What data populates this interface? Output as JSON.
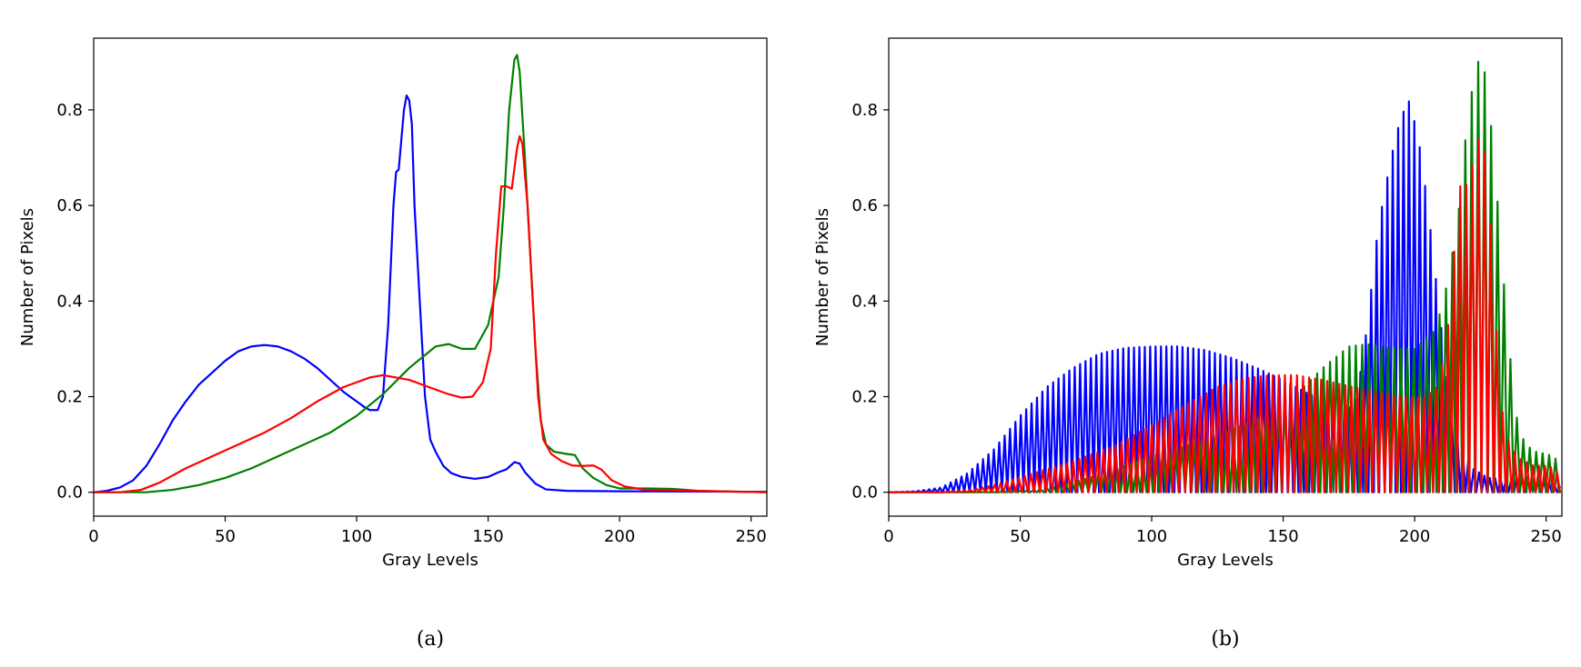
{
  "chart_data": [
    {
      "type": "line",
      "caption": "(a)",
      "xlabel": "Gray Levels",
      "ylabel": "Number of Pixels",
      "xlim": [
        0,
        256
      ],
      "ylim": [
        -0.05,
        0.95
      ],
      "xticks": [
        0,
        50,
        100,
        150,
        200,
        250
      ],
      "yticks": [
        0.0,
        0.2,
        0.4,
        0.6,
        0.8
      ],
      "ytick_labels": [
        "0.0",
        "0.2",
        "0.4",
        "0.6",
        "0.8"
      ],
      "grid": false,
      "series": [
        {
          "color": "#0000ff",
          "points": [
            [
              0,
              0
            ],
            [
              5,
              0.003
            ],
            [
              10,
              0.01
            ],
            [
              15,
              0.025
            ],
            [
              20,
              0.055
            ],
            [
              25,
              0.1
            ],
            [
              30,
              0.15
            ],
            [
              35,
              0.19
            ],
            [
              40,
              0.225
            ],
            [
              45,
              0.25
            ],
            [
              50,
              0.275
            ],
            [
              55,
              0.295
            ],
            [
              60,
              0.305
            ],
            [
              65,
              0.308
            ],
            [
              70,
              0.305
            ],
            [
              75,
              0.295
            ],
            [
              80,
              0.28
            ],
            [
              85,
              0.26
            ],
            [
              90,
              0.235
            ],
            [
              95,
              0.21
            ],
            [
              100,
              0.19
            ],
            [
              103,
              0.178
            ],
            [
              105,
              0.172
            ],
            [
              108,
              0.172
            ],
            [
              110,
              0.2
            ],
            [
              112,
              0.35
            ],
            [
              114,
              0.6
            ],
            [
              115,
              0.67
            ],
            [
              116,
              0.675
            ],
            [
              118,
              0.8
            ],
            [
              119,
              0.83
            ],
            [
              120,
              0.82
            ],
            [
              121,
              0.77
            ],
            [
              122,
              0.6
            ],
            [
              124,
              0.4
            ],
            [
              126,
              0.2
            ],
            [
              128,
              0.11
            ],
            [
              130,
              0.085
            ],
            [
              133,
              0.055
            ],
            [
              136,
              0.04
            ],
            [
              140,
              0.032
            ],
            [
              145,
              0.028
            ],
            [
              150,
              0.032
            ],
            [
              154,
              0.042
            ],
            [
              157,
              0.048
            ],
            [
              160,
              0.063
            ],
            [
              162,
              0.06
            ],
            [
              164,
              0.042
            ],
            [
              168,
              0.018
            ],
            [
              172,
              0.006
            ],
            [
              180,
              0.003
            ],
            [
              200,
              0.002
            ],
            [
              256,
              0.001
            ]
          ]
        },
        {
          "color": "#008000",
          "points": [
            [
              0,
              0
            ],
            [
              20,
              0
            ],
            [
              30,
              0.005
            ],
            [
              40,
              0.015
            ],
            [
              50,
              0.03
            ],
            [
              60,
              0.05
            ],
            [
              70,
              0.075
            ],
            [
              80,
              0.1
            ],
            [
              90,
              0.125
            ],
            [
              100,
              0.16
            ],
            [
              110,
              0.205
            ],
            [
              120,
              0.26
            ],
            [
              130,
              0.305
            ],
            [
              135,
              0.31
            ],
            [
              140,
              0.3
            ],
            [
              145,
              0.3
            ],
            [
              150,
              0.35
            ],
            [
              154,
              0.45
            ],
            [
              156,
              0.6
            ],
            [
              158,
              0.8
            ],
            [
              160,
              0.905
            ],
            [
              161,
              0.915
            ],
            [
              162,
              0.88
            ],
            [
              164,
              0.7
            ],
            [
              166,
              0.5
            ],
            [
              168,
              0.3
            ],
            [
              170,
              0.15
            ],
            [
              172,
              0.1
            ],
            [
              175,
              0.085
            ],
            [
              180,
              0.08
            ],
            [
              183,
              0.078
            ],
            [
              186,
              0.05
            ],
            [
              190,
              0.03
            ],
            [
              195,
              0.015
            ],
            [
              200,
              0.008
            ],
            [
              210,
              0.008
            ],
            [
              220,
              0.007
            ],
            [
              230,
              0.003
            ],
            [
              256,
              0
            ]
          ]
        },
        {
          "color": "#ff0000",
          "points": [
            [
              0,
              0
            ],
            [
              10,
              0
            ],
            [
              18,
              0.005
            ],
            [
              25,
              0.02
            ],
            [
              35,
              0.05
            ],
            [
              45,
              0.075
            ],
            [
              55,
              0.1
            ],
            [
              65,
              0.125
            ],
            [
              75,
              0.155
            ],
            [
              85,
              0.19
            ],
            [
              95,
              0.22
            ],
            [
              105,
              0.24
            ],
            [
              110,
              0.245
            ],
            [
              115,
              0.24
            ],
            [
              120,
              0.235
            ],
            [
              125,
              0.225
            ],
            [
              130,
              0.215
            ],
            [
              135,
              0.205
            ],
            [
              140,
              0.198
            ],
            [
              144,
              0.2
            ],
            [
              148,
              0.23
            ],
            [
              151,
              0.3
            ],
            [
              153,
              0.5
            ],
            [
              155,
              0.64
            ],
            [
              157,
              0.64
            ],
            [
              159,
              0.635
            ],
            [
              161,
              0.72
            ],
            [
              162,
              0.745
            ],
            [
              163,
              0.73
            ],
            [
              165,
              0.6
            ],
            [
              167,
              0.4
            ],
            [
              169,
              0.2
            ],
            [
              171,
              0.11
            ],
            [
              174,
              0.08
            ],
            [
              178,
              0.065
            ],
            [
              182,
              0.056
            ],
            [
              186,
              0.055
            ],
            [
              190,
              0.056
            ],
            [
              193,
              0.048
            ],
            [
              197,
              0.025
            ],
            [
              202,
              0.012
            ],
            [
              210,
              0.005
            ],
            [
              256,
              0
            ]
          ]
        }
      ]
    },
    {
      "type": "line",
      "caption": "(b)",
      "xlabel": "Gray Levels",
      "ylabel": "Number of Pixels",
      "xlim": [
        0,
        256
      ],
      "ylim": [
        -0.05,
        0.95
      ],
      "xticks": [
        0,
        50,
        100,
        150,
        200,
        250
      ],
      "yticks": [
        0.0,
        0.2,
        0.4,
        0.6,
        0.8
      ],
      "ytick_labels": [
        "0.0",
        "0.2",
        "0.4",
        "0.6",
        "0.8"
      ],
      "grid": false,
      "series": [
        {
          "color": "#0000ff",
          "points": [
            [
              0,
              0
            ],
            [
              10,
              0.002
            ],
            [
              20,
              0.01
            ],
            [
              30,
              0.04
            ],
            [
              40,
              0.09
            ],
            [
              50,
              0.16
            ],
            [
              60,
              0.22
            ],
            [
              70,
              0.26
            ],
            [
              80,
              0.29
            ],
            [
              90,
              0.302
            ],
            [
              100,
              0.305
            ],
            [
              110,
              0.305
            ],
            [
              120,
              0.298
            ],
            [
              130,
              0.282
            ],
            [
              140,
              0.26
            ],
            [
              150,
              0.235
            ],
            [
              160,
              0.205
            ],
            [
              170,
              0.18
            ],
            [
              175,
              0.175
            ],
            [
              178,
              0.2
            ],
            [
              182,
              0.35
            ],
            [
              186,
              0.55
            ],
            [
              190,
              0.67
            ],
            [
              193,
              0.75
            ],
            [
              196,
              0.8
            ],
            [
              197,
              0.83
            ],
            [
              199,
              0.8
            ],
            [
              202,
              0.72
            ],
            [
              205,
              0.6
            ],
            [
              208,
              0.45
            ],
            [
              211,
              0.3
            ],
            [
              214,
              0.15
            ],
            [
              218,
              0.09
            ],
            [
              222,
              0.05
            ],
            [
              228,
              0.03
            ],
            [
              235,
              0.028
            ],
            [
              242,
              0.03
            ],
            [
              248,
              0.025
            ],
            [
              256,
              0.01
            ]
          ]
        },
        {
          "color": "#008000",
          "points": [
            [
              0,
              0
            ],
            [
              40,
              0
            ],
            [
              55,
              0.005
            ],
            [
              70,
              0.02
            ],
            [
              85,
              0.045
            ],
            [
              100,
              0.075
            ],
            [
              115,
              0.1
            ],
            [
              130,
              0.13
            ],
            [
              145,
              0.165
            ],
            [
              155,
              0.205
            ],
            [
              165,
              0.26
            ],
            [
              175,
              0.305
            ],
            [
              182,
              0.31
            ],
            [
              190,
              0.302
            ],
            [
              200,
              0.3
            ],
            [
              208,
              0.34
            ],
            [
              213,
              0.45
            ],
            [
              217,
              0.6
            ],
            [
              220,
              0.78
            ],
            [
              223,
              0.88
            ],
            [
              225,
              0.915
            ],
            [
              227,
              0.87
            ],
            [
              230,
              0.72
            ],
            [
              233,
              0.5
            ],
            [
              236,
              0.3
            ],
            [
              239,
              0.15
            ],
            [
              242,
              0.1
            ],
            [
              246,
              0.085
            ],
            [
              250,
              0.08
            ],
            [
              253,
              0.075
            ],
            [
              256,
              0.05
            ]
          ]
        },
        {
          "color": "#ff0000",
          "points": [
            [
              0,
              0
            ],
            [
              20,
              0
            ],
            [
              30,
              0.004
            ],
            [
              40,
              0.015
            ],
            [
              55,
              0.04
            ],
            [
              70,
              0.065
            ],
            [
              85,
              0.095
            ],
            [
              100,
              0.14
            ],
            [
              115,
              0.19
            ],
            [
              125,
              0.22
            ],
            [
              135,
              0.238
            ],
            [
              145,
              0.245
            ],
            [
              155,
              0.245
            ],
            [
              165,
              0.235
            ],
            [
              175,
              0.222
            ],
            [
              185,
              0.21
            ],
            [
              195,
              0.2
            ],
            [
              203,
              0.198
            ],
            [
              208,
              0.215
            ],
            [
              212,
              0.3
            ],
            [
              215,
              0.5
            ],
            [
              217,
              0.64
            ],
            [
              219,
              0.64
            ],
            [
              221,
              0.65
            ],
            [
              223,
              0.72
            ],
            [
              225,
              0.745
            ],
            [
              227,
              0.7
            ],
            [
              229,
              0.55
            ],
            [
              231,
              0.35
            ],
            [
              233,
              0.18
            ],
            [
              236,
              0.1
            ],
            [
              240,
              0.07
            ],
            [
              245,
              0.056
            ],
            [
              250,
              0.055
            ],
            [
              253,
              0.05
            ],
            [
              256,
              0.03
            ]
          ]
        }
      ]
    }
  ]
}
